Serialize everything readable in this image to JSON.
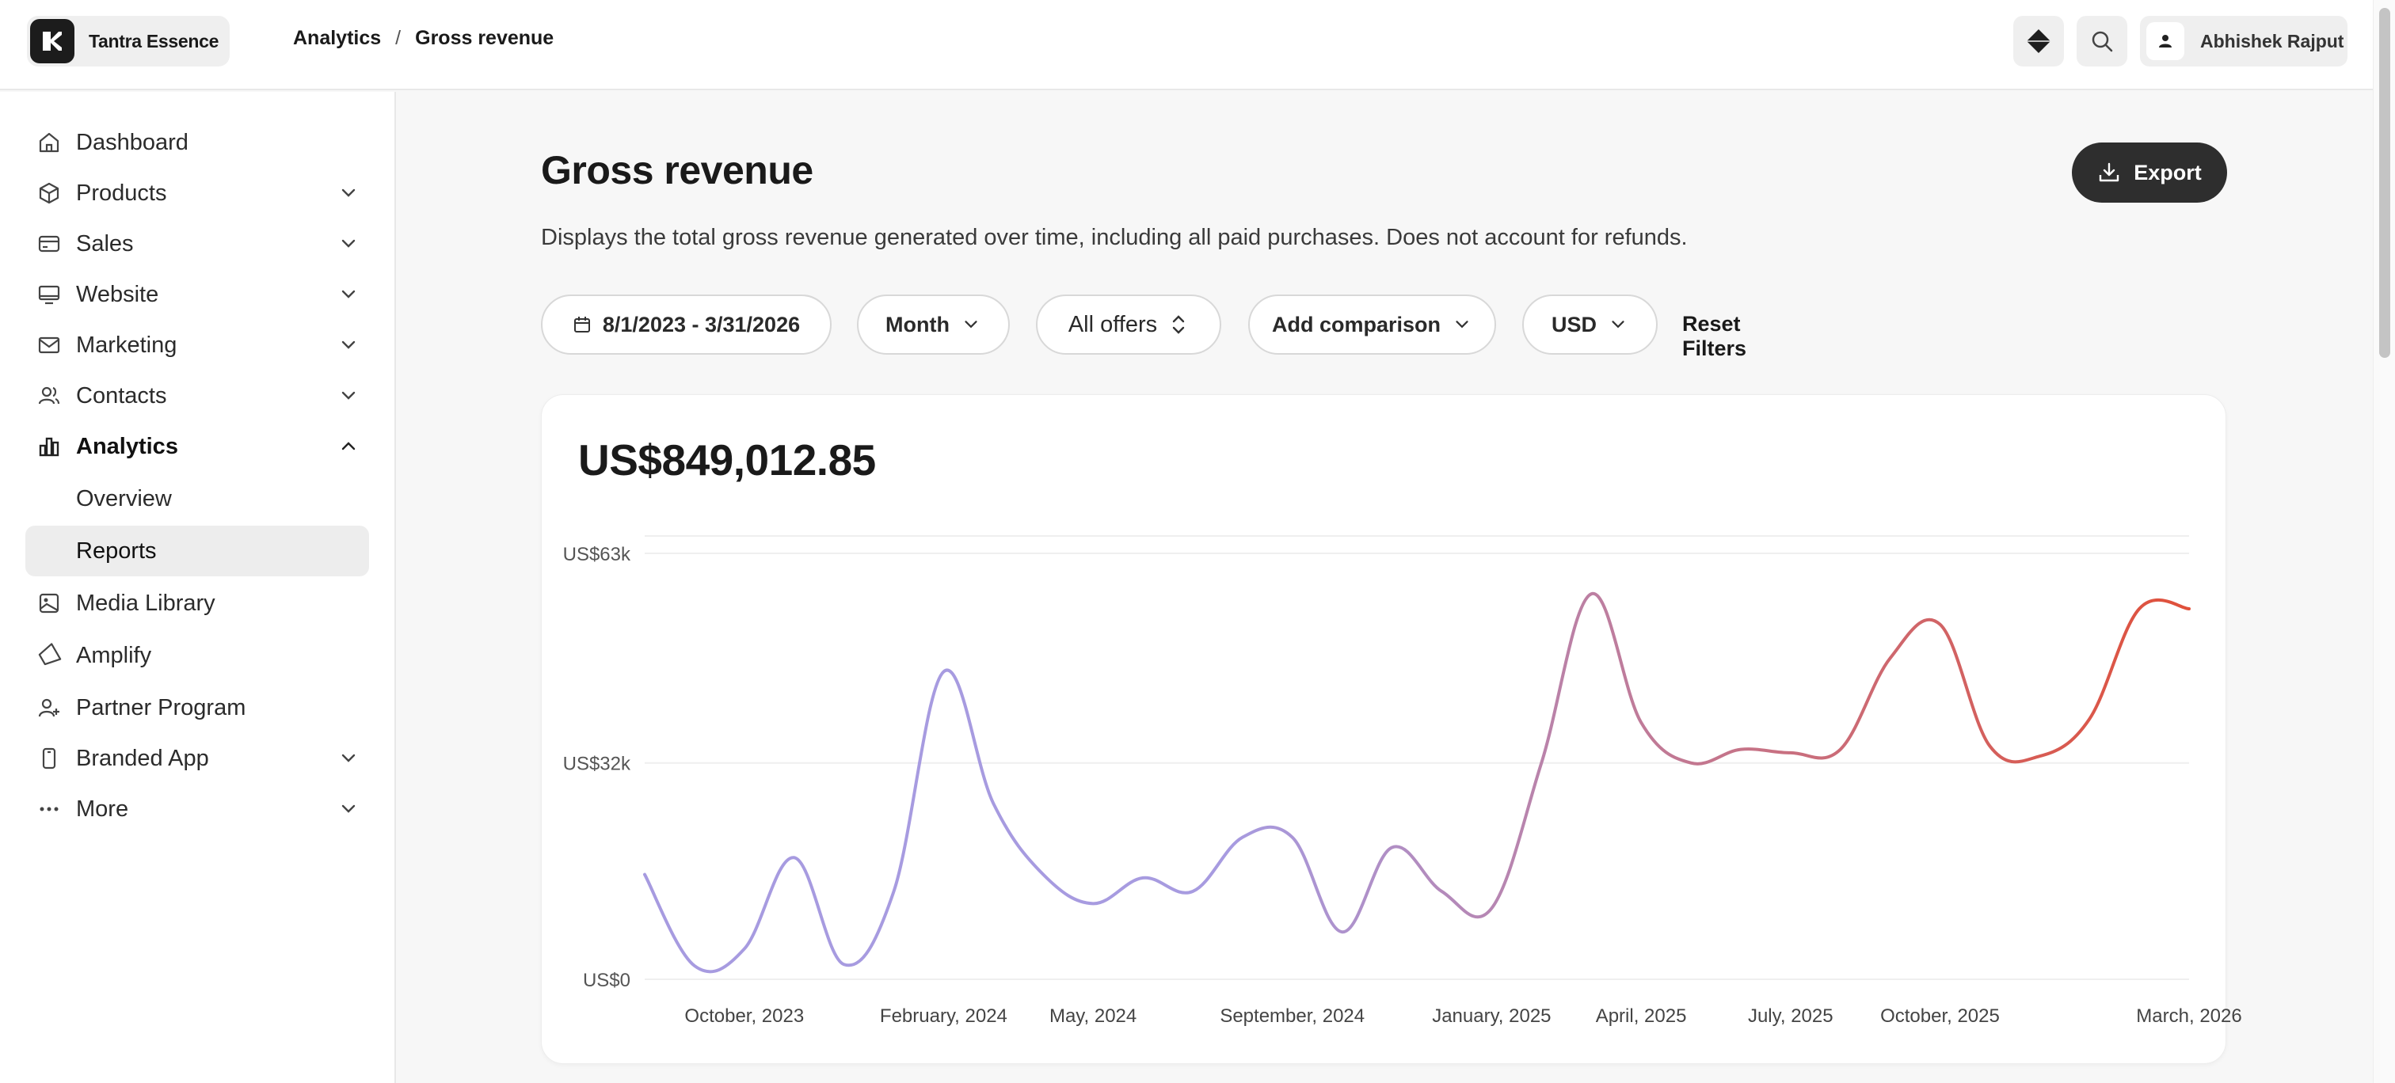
{
  "brand": {
    "name": "Tantra Essence"
  },
  "breadcrumb": {
    "parent": "Analytics",
    "separator": "/",
    "current": "Gross revenue"
  },
  "user": {
    "name": "Abhishek Rajput"
  },
  "sidebar": {
    "items": [
      {
        "label": "Dashboard",
        "icon": "home-icon"
      },
      {
        "label": "Products",
        "icon": "box-icon"
      },
      {
        "label": "Sales",
        "icon": "credit-card-icon"
      },
      {
        "label": "Website",
        "icon": "monitor-icon"
      },
      {
        "label": "Marketing",
        "icon": "mail-icon"
      },
      {
        "label": "Contacts",
        "icon": "users-icon"
      },
      {
        "label": "Analytics",
        "icon": "bar-chart-icon"
      },
      {
        "label": "Overview"
      },
      {
        "label": "Reports"
      },
      {
        "label": "Media Library",
        "icon": "image-icon"
      },
      {
        "label": "Amplify",
        "icon": "megaphone-icon"
      },
      {
        "label": "Partner Program",
        "icon": "user-plus-icon"
      },
      {
        "label": "Branded App",
        "icon": "phone-icon"
      },
      {
        "label": "More",
        "icon": "ellipsis-icon"
      }
    ]
  },
  "page": {
    "title": "Gross revenue",
    "description": "Displays the total gross revenue generated over time, including all paid purchases. Does not account for refunds.",
    "export_label": "Export"
  },
  "filters": {
    "date_range": "8/1/2023 - 3/31/2026",
    "interval": "Month",
    "offers": "All offers",
    "comparison": "Add comparison",
    "currency": "USD",
    "reset": "Reset Filters"
  },
  "summary": {
    "total": "US$849,012.85"
  },
  "colors": {
    "line_start": "#a79be0",
    "line_end": "#e0503a",
    "dark": "#2e2e2e"
  },
  "chart_data": {
    "type": "line",
    "ytick_labels": [
      "US$0",
      "US$32k",
      "US$63k"
    ],
    "ytick_values": [
      0,
      32000,
      63000
    ],
    "ylim": [
      0,
      63000
    ],
    "xtick_labels": [
      "October, 2023",
      "February, 2024",
      "May, 2024",
      "September, 2024",
      "January, 2025",
      "April, 2025",
      "July, 2025",
      "October, 2025",
      "March, 2026"
    ],
    "xtick_index": [
      2,
      6,
      9,
      13,
      17,
      20,
      23,
      26,
      31
    ],
    "grid": true,
    "legend": "none",
    "x": [
      "Aug 2023",
      "Sep 2023",
      "Oct 2023",
      "Nov 2023",
      "Dec 2023",
      "Jan 2024",
      "Feb 2024",
      "Mar 2024",
      "Apr 2024",
      "May 2024",
      "Jun 2024",
      "Jul 2024",
      "Aug 2024",
      "Sep 2024",
      "Oct 2024",
      "Nov 2024",
      "Dec 2024",
      "Jan 2025",
      "Feb 2025",
      "Mar 2025",
      "Apr 2025",
      "May 2025",
      "Jun 2025",
      "Jul 2025",
      "Aug 2025",
      "Sep 2025",
      "Oct 2025",
      "Nov 2025",
      "Dec 2025",
      "Jan 2026",
      "Feb 2026",
      "Mar 2026"
    ],
    "values": [
      15500,
      2000,
      4500,
      18000,
      2200,
      13000,
      45500,
      26000,
      15500,
      11200,
      15000,
      13000,
      21000,
      21000,
      7000,
      19500,
      13000,
      10500,
      32000,
      57000,
      38000,
      32000,
      34000,
      33500,
      34000,
      47500,
      52500,
      34500,
      33000,
      38500,
      54800,
      54800
    ]
  }
}
